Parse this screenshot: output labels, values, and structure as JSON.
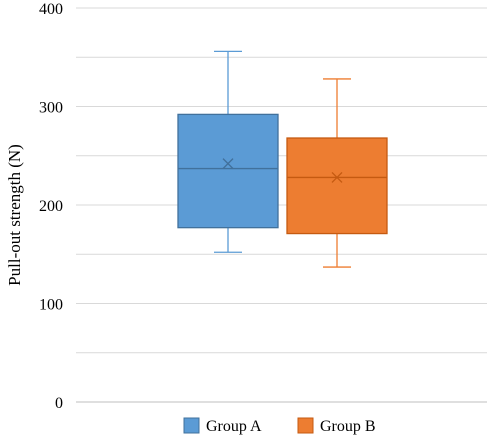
{
  "chart_data": {
    "type": "box",
    "title": "",
    "xlabel": "",
    "ylabel": "Pull-out strength (N)",
    "ylim": [
      0,
      400
    ],
    "yticks": [
      0,
      100,
      200,
      300,
      400
    ],
    "ytick_labels": [
      "0",
      "100",
      "200",
      "300",
      "400"
    ],
    "grid": true,
    "legend_position": "bottom",
    "series": [
      {
        "name": "Group A",
        "color": "#5B9BD5",
        "edge_color": "#41719C",
        "min": 152,
        "q1": 177,
        "median": 237,
        "q3": 292,
        "max": 356,
        "mean": 242
      },
      {
        "name": "Group B",
        "color": "#ED7D31",
        "edge_color": "#C55A11",
        "min": 137,
        "q1": 171,
        "median": 228,
        "q3": 268,
        "max": 328,
        "mean": 228
      }
    ]
  }
}
